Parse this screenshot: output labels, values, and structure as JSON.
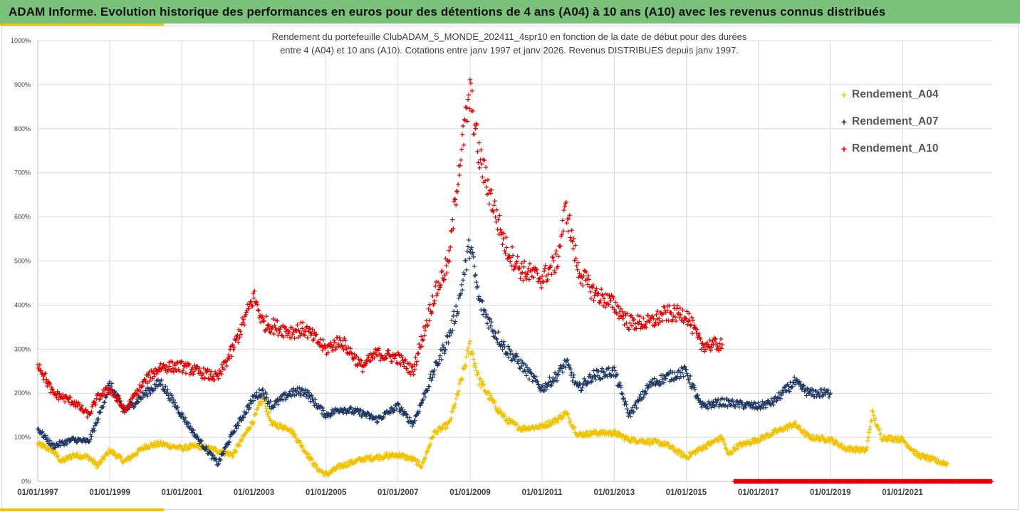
{
  "header": {
    "title": "ADAM Informe. Evolution historique des performances en euros pour des détentions de 4 ans (A04) à 10 ans (A10) avec les revenus connus distribués"
  },
  "chart_data": {
    "type": "scatter",
    "title_line1": "Rendement du portefeuille ClubADAM_5_MONDE_202411_4spr10  en fonction de la date de début pour des durées",
    "title_line2": "entre 4 (A04) et 10 ans (A10). Cotations entre janv 1997 et janv 2026. Revenus DISTRIBUES depuis janv 1997.",
    "xlabel": "",
    "ylabel": "",
    "x_range": [
      "1997-01-01",
      "2023-06-30"
    ],
    "ylim": [
      0,
      1000
    ],
    "y_ticks": [
      "0%",
      "100%",
      "200%",
      "300%",
      "400%",
      "500%",
      "600%",
      "700%",
      "800%",
      "900%",
      "1000%"
    ],
    "x_ticks": [
      "01/01/1997",
      "01/01/1999",
      "01/01/2001",
      "01/01/2003",
      "01/01/2005",
      "01/01/2007",
      "01/01/2009",
      "01/01/2011",
      "01/01/2013",
      "01/01/2015",
      "01/01/2017",
      "01/01/2019",
      "01/01/2021"
    ],
    "grid": true,
    "legend_position": "top-right",
    "series": [
      {
        "name": "Rendement_A04",
        "color": "#f2c200",
        "points": [
          [
            "1997-01-01",
            85
          ],
          [
            "1997-06-01",
            70
          ],
          [
            "1997-09-01",
            45
          ],
          [
            "1998-01-01",
            60
          ],
          [
            "1998-06-01",
            55
          ],
          [
            "1998-09-01",
            35
          ],
          [
            "1999-01-01",
            70
          ],
          [
            "1999-06-01",
            45
          ],
          [
            "2000-01-01",
            80
          ],
          [
            "2000-06-01",
            85
          ],
          [
            "2001-01-01",
            75
          ],
          [
            "2001-06-01",
            80
          ],
          [
            "2002-01-01",
            70
          ],
          [
            "2002-06-01",
            60
          ],
          [
            "2003-01-01",
            140
          ],
          [
            "2003-04-01",
            190
          ],
          [
            "2003-07-01",
            130
          ],
          [
            "2004-01-01",
            120
          ],
          [
            "2004-06-01",
            70
          ],
          [
            "2004-10-01",
            30
          ],
          [
            "2005-01-01",
            15
          ],
          [
            "2005-06-01",
            35
          ],
          [
            "2006-01-01",
            50
          ],
          [
            "2006-06-01",
            55
          ],
          [
            "2007-01-01",
            60
          ],
          [
            "2007-06-01",
            50
          ],
          [
            "2007-09-01",
            35
          ],
          [
            "2008-01-01",
            110
          ],
          [
            "2008-06-01",
            130
          ],
          [
            "2008-09-01",
            200
          ],
          [
            "2009-01-01",
            310
          ],
          [
            "2009-04-01",
            230
          ],
          [
            "2009-09-01",
            175
          ],
          [
            "2010-01-01",
            140
          ],
          [
            "2010-06-01",
            120
          ],
          [
            "2011-01-01",
            125
          ],
          [
            "2011-06-01",
            140
          ],
          [
            "2011-09-01",
            155
          ],
          [
            "2012-01-01",
            105
          ],
          [
            "2012-06-01",
            110
          ],
          [
            "2013-01-01",
            110
          ],
          [
            "2013-06-01",
            95
          ],
          [
            "2014-01-01",
            90
          ],
          [
            "2014-06-01",
            85
          ],
          [
            "2015-01-01",
            55
          ],
          [
            "2015-06-01",
            75
          ],
          [
            "2016-01-01",
            100
          ],
          [
            "2016-03-01",
            60
          ],
          [
            "2016-06-01",
            80
          ],
          [
            "2017-01-01",
            95
          ],
          [
            "2017-06-01",
            110
          ],
          [
            "2018-01-01",
            130
          ],
          [
            "2018-06-01",
            100
          ],
          [
            "2019-01-01",
            95
          ],
          [
            "2019-06-01",
            75
          ],
          [
            "2020-01-01",
            70
          ],
          [
            "2020-03-01",
            155
          ],
          [
            "2020-06-01",
            100
          ],
          [
            "2021-01-01",
            95
          ],
          [
            "2021-06-01",
            60
          ],
          [
            "2022-01-01",
            45
          ],
          [
            "2022-04-01",
            40
          ]
        ]
      },
      {
        "name": "Rendement_A07",
        "color": "#1f3864",
        "points": [
          [
            "1997-01-01",
            120
          ],
          [
            "1997-06-01",
            80
          ],
          [
            "1998-01-01",
            95
          ],
          [
            "1998-06-01",
            90
          ],
          [
            "1998-09-01",
            140
          ],
          [
            "1999-01-01",
            220
          ],
          [
            "1999-06-01",
            160
          ],
          [
            "2000-01-01",
            200
          ],
          [
            "2000-06-01",
            225
          ],
          [
            "2001-01-01",
            150
          ],
          [
            "2001-06-01",
            100
          ],
          [
            "2002-01-01",
            40
          ],
          [
            "2002-06-01",
            110
          ],
          [
            "2003-01-01",
            190
          ],
          [
            "2003-04-01",
            205
          ],
          [
            "2003-07-01",
            170
          ],
          [
            "2004-01-01",
            200
          ],
          [
            "2004-06-01",
            205
          ],
          [
            "2005-01-01",
            150
          ],
          [
            "2005-06-01",
            165
          ],
          [
            "2006-01-01",
            155
          ],
          [
            "2006-06-01",
            140
          ],
          [
            "2007-01-01",
            170
          ],
          [
            "2007-06-01",
            130
          ],
          [
            "2008-01-01",
            250
          ],
          [
            "2008-06-01",
            330
          ],
          [
            "2008-09-01",
            400
          ],
          [
            "2009-01-01",
            540
          ],
          [
            "2009-04-01",
            410
          ],
          [
            "2009-09-01",
            340
          ],
          [
            "2010-01-01",
            300
          ],
          [
            "2010-06-01",
            265
          ],
          [
            "2011-01-01",
            210
          ],
          [
            "2011-06-01",
            240
          ],
          [
            "2011-09-01",
            270
          ],
          [
            "2012-01-01",
            210
          ],
          [
            "2012-06-01",
            240
          ],
          [
            "2013-01-01",
            250
          ],
          [
            "2013-06-01",
            150
          ],
          [
            "2014-01-01",
            220
          ],
          [
            "2014-06-01",
            235
          ],
          [
            "2015-01-01",
            250
          ],
          [
            "2015-06-01",
            170
          ],
          [
            "2016-01-01",
            180
          ],
          [
            "2016-06-01",
            175
          ],
          [
            "2017-01-01",
            170
          ],
          [
            "2017-06-01",
            180
          ],
          [
            "2018-01-01",
            225
          ],
          [
            "2018-06-01",
            200
          ],
          [
            "2019-01-01",
            200
          ]
        ]
      },
      {
        "name": "Rendement_A10",
        "color": "#e00000",
        "points": [
          [
            "1997-01-01",
            270
          ],
          [
            "1997-06-01",
            200
          ],
          [
            "1998-01-01",
            180
          ],
          [
            "1998-06-01",
            150
          ],
          [
            "1998-09-01",
            190
          ],
          [
            "1999-01-01",
            210
          ],
          [
            "1999-06-01",
            160
          ],
          [
            "2000-01-01",
            230
          ],
          [
            "2000-06-01",
            260
          ],
          [
            "2001-01-01",
            260
          ],
          [
            "2001-06-01",
            250
          ],
          [
            "2002-01-01",
            235
          ],
          [
            "2002-06-01",
            300
          ],
          [
            "2003-01-01",
            420
          ],
          [
            "2003-04-01",
            360
          ],
          [
            "2004-01-01",
            340
          ],
          [
            "2004-06-01",
            345
          ],
          [
            "2005-01-01",
            300
          ],
          [
            "2005-06-01",
            320
          ],
          [
            "2006-01-01",
            260
          ],
          [
            "2006-06-01",
            290
          ],
          [
            "2007-01-01",
            280
          ],
          [
            "2007-06-01",
            250
          ],
          [
            "2008-01-01",
            420
          ],
          [
            "2008-06-01",
            500
          ],
          [
            "2008-09-01",
            700
          ],
          [
            "2009-01-01",
            880
          ],
          [
            "2009-04-01",
            740
          ],
          [
            "2009-09-01",
            620
          ],
          [
            "2010-01-01",
            530
          ],
          [
            "2010-06-01",
            480
          ],
          [
            "2011-01-01",
            460
          ],
          [
            "2011-06-01",
            500
          ],
          [
            "2011-09-01",
            620
          ],
          [
            "2012-01-01",
            480
          ],
          [
            "2012-06-01",
            430
          ],
          [
            "2013-01-01",
            400
          ],
          [
            "2013-06-01",
            360
          ],
          [
            "2014-01-01",
            360
          ],
          [
            "2014-06-01",
            380
          ],
          [
            "2015-01-01",
            380
          ],
          [
            "2015-06-01",
            310
          ],
          [
            "2016-01-01",
            310
          ]
        ],
        "tail_zero_range": [
          "2016-01-01",
          "2023-06-30"
        ]
      }
    ]
  }
}
